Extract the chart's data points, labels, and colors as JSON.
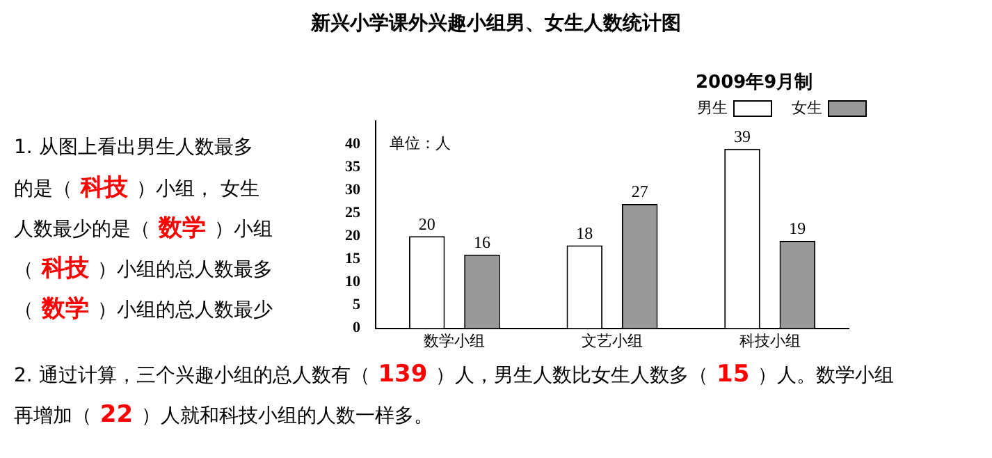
{
  "chart_data": {
    "type": "bar",
    "title": "新兴小学课外兴趣小组男、女生人数统计图",
    "ylabel": "单位：人",
    "categories": [
      "数学小组",
      "文艺小组",
      "科技小组"
    ],
    "series": [
      {
        "name": "男生",
        "color": "#ffffff",
        "values": [
          20,
          18,
          39
        ]
      },
      {
        "name": "女生",
        "color": "#999999",
        "values": [
          16,
          27,
          19
        ]
      }
    ],
    "ylim": [
      0,
      45
    ],
    "yticks": [
      0,
      5,
      10,
      15,
      20,
      25,
      30,
      35,
      40
    ],
    "grid": false,
    "legend": "top right",
    "data_labels": true,
    "annotations": [
      "2009年9月制",
      "1. 从图上看出男生人数最多",
      "的是（ 科技 ）小组， 女生",
      "人数最少的是（ 数学 ）小组",
      "（ 科技 ）小组的总人数最多",
      "（ 数学 ）小组的总人数最少",
      "2. 通过计算，三个兴趣小组的总人数有（ 139 ）人，男生人数比女生人数多（ 15 ）人。数学小组",
      "再增加（ 22 ）人就和科技小组的人数一样多。"
    ]
  }
}
